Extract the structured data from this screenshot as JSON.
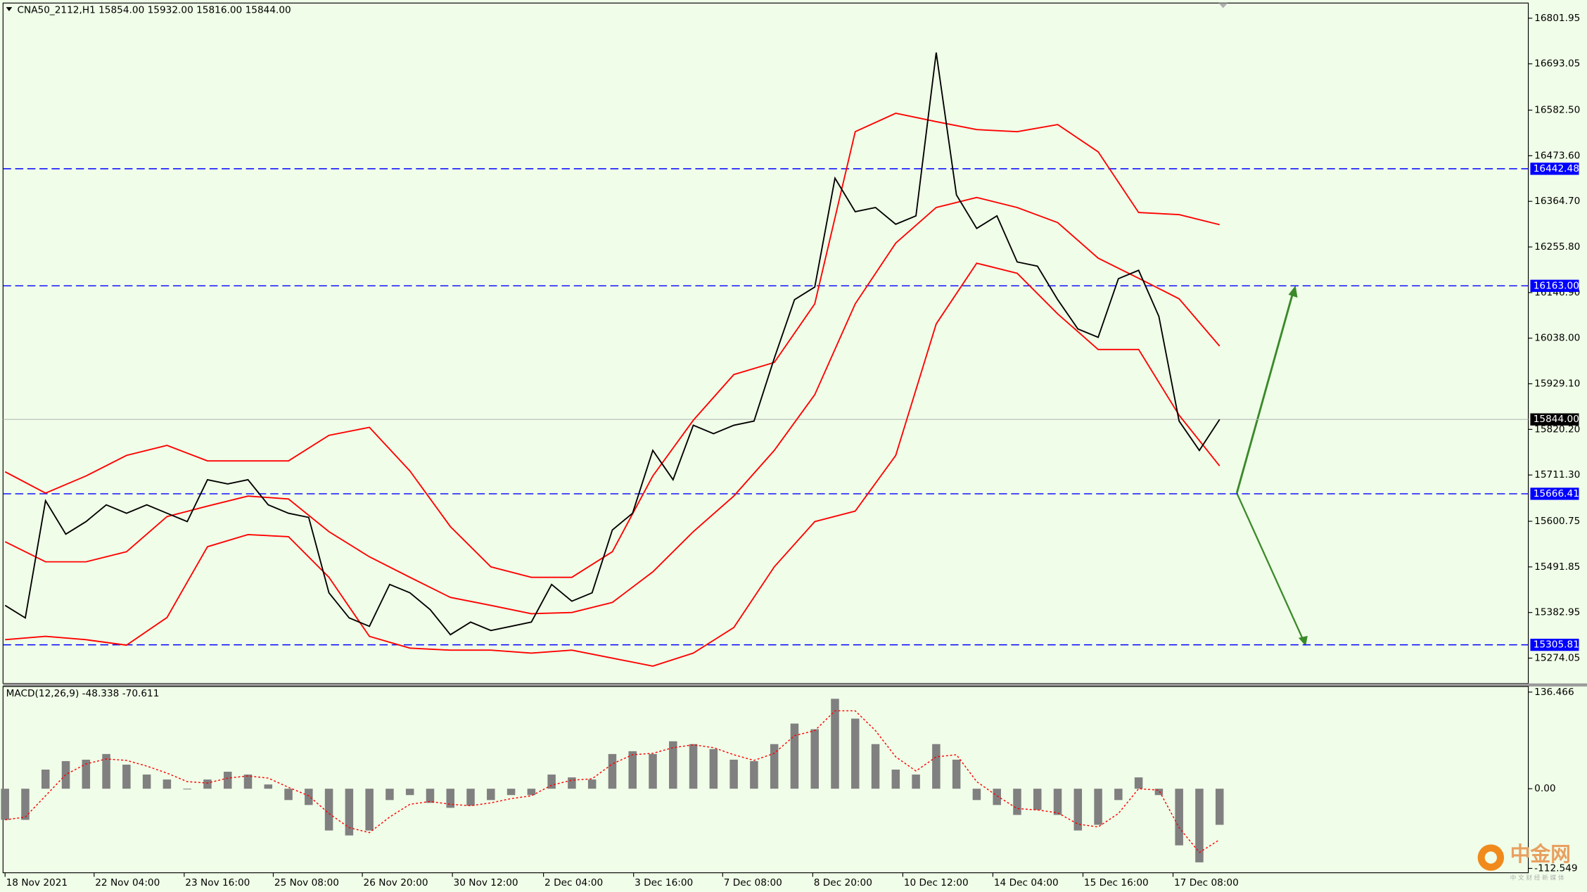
{
  "chart_data": {
    "type": "line",
    "header": "CNA50_2112,H1  15854.00 15932.00 15816.00 15844.00",
    "x": [
      0,
      1,
      2,
      3,
      4,
      5,
      6,
      7,
      8,
      9,
      10,
      11,
      12,
      13,
      14,
      15,
      16,
      17,
      18,
      19,
      20,
      21,
      22,
      23,
      24,
      25,
      26,
      27,
      28,
      29,
      30,
      31,
      32,
      33,
      34,
      35,
      36,
      37,
      38,
      39,
      40,
      41,
      42,
      43,
      44,
      45,
      46,
      47,
      48,
      49,
      50,
      51,
      52,
      53,
      54,
      55,
      56,
      57,
      58,
      59,
      60
    ],
    "xlim": [
      -0.1,
      75.25
    ],
    "xticks": [
      {
        "value": 0,
        "label": "18 Nov 2021"
      },
      {
        "value": 4.4,
        "label": "22 Nov 04:00"
      },
      {
        "value": 8.85,
        "label": "23 Nov 16:00"
      },
      {
        "value": 13.25,
        "label": "25 Nov 08:00"
      },
      {
        "value": 17.65,
        "label": "26 Nov 20:00"
      },
      {
        "value": 22.1,
        "label": "30 Nov 12:00"
      },
      {
        "value": 26.6,
        "label": "2 Dec 04:00"
      },
      {
        "value": 31.05,
        "label": "3 Dec 16:00"
      },
      {
        "value": 35.45,
        "label": "7 Dec 08:00"
      },
      {
        "value": 39.9,
        "label": "8 Dec 20:00"
      },
      {
        "value": 44.35,
        "label": "10 Dec 12:00"
      },
      {
        "value": 48.8,
        "label": "14 Dec 04:00"
      },
      {
        "value": 53.25,
        "label": "15 Dec 16:00"
      },
      {
        "value": 57.7,
        "label": "17 Dec 08:00"
      }
    ],
    "ylim": [
      15213.6,
      16838.2
    ],
    "yticks": [
      16801.95,
      16693.05,
      {
        "value": 16582.5,
        "label": "16582.50"
      },
      {
        "value": 16473.6,
        "label": "16473.60"
      },
      {
        "value": 16364.7,
        "label": "16364.70"
      },
      {
        "value": 16255.8,
        "label": "16255.80"
      },
      {
        "value": 16146.9,
        "label": "16146.90"
      },
      {
        "value": 16038,
        "label": "16038.00"
      },
      {
        "value": 15929.1,
        "label": "15929.10"
      },
      {
        "value": 15820.2,
        "label": "15820.20"
      },
      {
        "value": 15711.3,
        "label": "15711.30"
      },
      15600.75,
      15491.85,
      15382.95,
      15274.05
    ],
    "price": {
      "color": "#000000",
      "values": [
        15400,
        15370,
        15650,
        15570,
        15600,
        15640,
        15620,
        15640,
        15620,
        15600,
        15700,
        15690,
        15700,
        15640,
        15620,
        15610,
        15430,
        15370,
        15350,
        15450,
        15430,
        15390,
        15330,
        15360,
        15340,
        15350,
        15360,
        15450,
        15410,
        15430,
        15580,
        15620,
        15770,
        15700,
        15830,
        15810,
        15830,
        15840,
        15990,
        16130,
        16160,
        16420,
        16340,
        16350,
        16310,
        16330,
        16720,
        16380,
        16300,
        16330,
        16220,
        16210,
        16130,
        16060,
        16040,
        16180,
        16200,
        16090,
        15840,
        15770,
        15844
      ]
    },
    "bands": [
      {
        "color": "#ff0000",
        "x": [
          0,
          2,
          4,
          6,
          8,
          10,
          12,
          14,
          16,
          18,
          20,
          22,
          24,
          26,
          28,
          30,
          32,
          34,
          36,
          38,
          40,
          42,
          44,
          46,
          48,
          50,
          52,
          54,
          56,
          58,
          60
        ],
        "values": [
          15719,
          15668,
          15709,
          15758,
          15782,
          15745,
          15745,
          15745,
          15806,
          15825,
          15721,
          15588,
          15492,
          15467,
          15467,
          15528,
          15709,
          15842,
          15951,
          15980,
          16120,
          16531,
          16575,
          16555,
          16536,
          16531,
          16548,
          16483,
          16338,
          16333,
          16309
        ]
      },
      {
        "color": "#ff0000",
        "x": [
          0,
          2,
          4,
          6,
          8,
          10,
          12,
          14,
          16,
          18,
          20,
          22,
          24,
          26,
          28,
          30,
          32,
          34,
          36,
          38,
          40,
          42,
          44,
          46,
          48,
          50,
          52,
          54,
          56,
          58,
          60
        ],
        "values": [
          15552,
          15504,
          15504,
          15528,
          15612,
          15637,
          15661,
          15654,
          15576,
          15516,
          15467,
          15419,
          15400,
          15380,
          15383,
          15407,
          15480,
          15576,
          15661,
          15770,
          15903,
          16120,
          16265,
          16350,
          16374,
          16350,
          16314,
          16229,
          16181,
          16132,
          16019
        ]
      },
      {
        "color": "#ff0000",
        "x": [
          0,
          2,
          4,
          6,
          8,
          10,
          12,
          14,
          16,
          18,
          20,
          22,
          24,
          26,
          28,
          30,
          32,
          34,
          36,
          38,
          40,
          42,
          44,
          46,
          48,
          50,
          52,
          54,
          56,
          58,
          60
        ],
        "values": [
          15318,
          15326,
          15318,
          15305,
          15371,
          15540,
          15569,
          15564,
          15467,
          15326,
          15298,
          15293,
          15293,
          15286,
          15293,
          15274,
          15255,
          15286,
          15347,
          15492,
          15600,
          15625,
          15758,
          16072,
          16217,
          16193,
          16096,
          16011,
          16011,
          15854,
          15733
        ]
      }
    ],
    "levels": [
      16442.48,
      {
        "value": 16163,
        "label": "16163.00"
      },
      15666.41,
      15305.81
    ],
    "level_color": "#0000ff",
    "current": {
      "value": 15844,
      "label": "15844.00"
    },
    "macd": {
      "label": "MACD(12,26,9) -48.338 -70.611",
      "ylim": [
        -118.7,
        144.4
      ],
      "yticks": [
        136.466,
        {
          "value": 0,
          "label": "0.00"
        },
        -112.549
      ],
      "histogram": {
        "color": "#808080",
        "values": [
          -44,
          -44,
          27,
          39,
          41,
          49,
          34,
          20,
          13,
          -1,
          13,
          24,
          20,
          6,
          -16,
          -23,
          -59,
          -66,
          -59,
          -16,
          -9,
          -20,
          -27,
          -24,
          -16,
          -9,
          -9,
          20,
          16,
          13,
          49,
          53,
          49,
          67,
          63,
          56,
          41,
          39,
          63,
          92,
          84,
          127,
          99,
          63,
          27,
          20,
          63,
          41,
          -16,
          -23,
          -37,
          -30,
          -37,
          -59,
          -51,
          -16,
          16,
          -9,
          -80,
          -104,
          -51
        ]
      },
      "signal": {
        "color": "#ff0000",
        "values": [
          -44,
          -40,
          -10,
          20,
          35,
          42,
          40,
          32,
          22,
          10,
          8,
          15,
          18,
          15,
          2,
          -10,
          -35,
          -55,
          -62,
          -40,
          -22,
          -18,
          -22,
          -24,
          -20,
          -14,
          -10,
          5,
          12,
          14,
          35,
          48,
          50,
          58,
          62,
          58,
          48,
          40,
          50,
          75,
          82,
          110,
          110,
          82,
          45,
          25,
          45,
          48,
          10,
          -10,
          -28,
          -30,
          -34,
          -50,
          -54,
          -35,
          0,
          -2,
          -55,
          -90,
          -72
        ]
      }
    },
    "watermark": {
      "logo": "中金网",
      "sub": "中 文 财 经 新 媒 体"
    }
  }
}
